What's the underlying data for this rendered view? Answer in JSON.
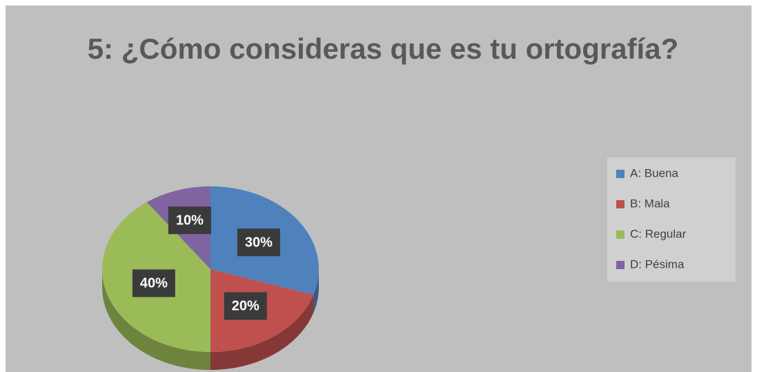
{
  "chart_data": {
    "type": "pie",
    "title": "5: ¿Cómo consideras que es tu ortografía?",
    "categories": [
      "A: Buena",
      "B: Mala",
      "C: Regular",
      "D: Pésima"
    ],
    "values": [
      30,
      20,
      40,
      10
    ],
    "value_labels": [
      "30%",
      "20%",
      "40%",
      "10%"
    ],
    "colors": [
      "#4f81bd",
      "#c0504d",
      "#9bbb59",
      "#8064a2"
    ],
    "legend": "right"
  }
}
